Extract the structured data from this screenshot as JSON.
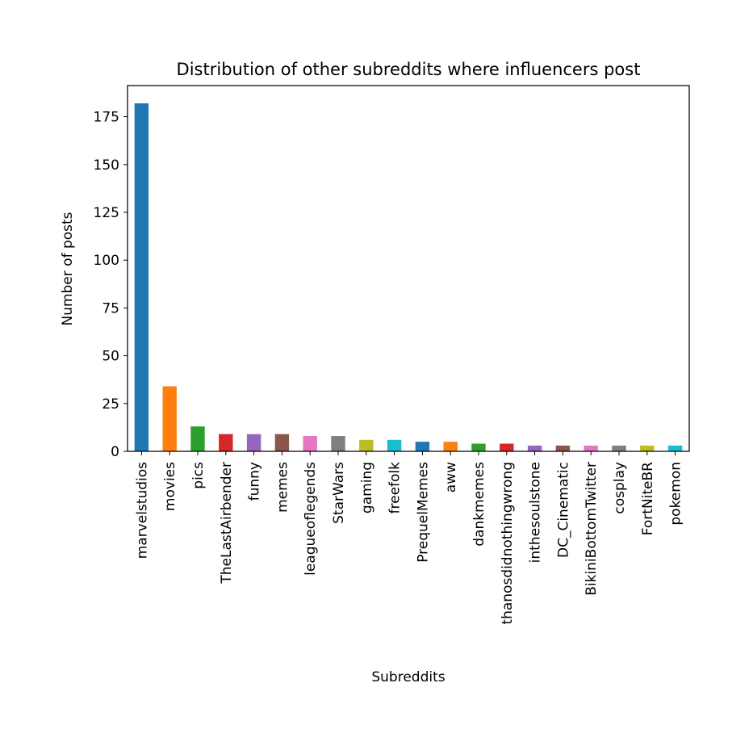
{
  "chart_data": {
    "type": "bar",
    "title": "Distribution of other subreddits where influencers post",
    "xlabel": "Subreddits",
    "ylabel": "Number of posts",
    "ylim": [
      0,
      191
    ],
    "yticks": [
      0,
      25,
      50,
      75,
      100,
      125,
      150,
      175
    ],
    "grid": false,
    "legend": "none",
    "categories": [
      "marvelstudios",
      "movies",
      "pics",
      "TheLastAirbender",
      "funny",
      "memes",
      "leagueoflegends",
      "StarWars",
      "gaming",
      "freefolk",
      "PrequelMemes",
      "aww",
      "dankmemes",
      "thanosdidnothingwrong",
      "inthesoulstone",
      "DC_Cinematic",
      "BikiniBottomTwitter",
      "cosplay",
      "FortNiteBR",
      "pokemon"
    ],
    "values": [
      182,
      34,
      13,
      9,
      9,
      9,
      8,
      8,
      6,
      6,
      5,
      5,
      4,
      4,
      3,
      3,
      3,
      3,
      3,
      3
    ],
    "colors": [
      "#1f77b4",
      "#ff7f0e",
      "#2ca02c",
      "#d62728",
      "#9467bd",
      "#8c564b",
      "#e377c2",
      "#7f7f7f",
      "#bcbd22",
      "#17becf"
    ]
  }
}
